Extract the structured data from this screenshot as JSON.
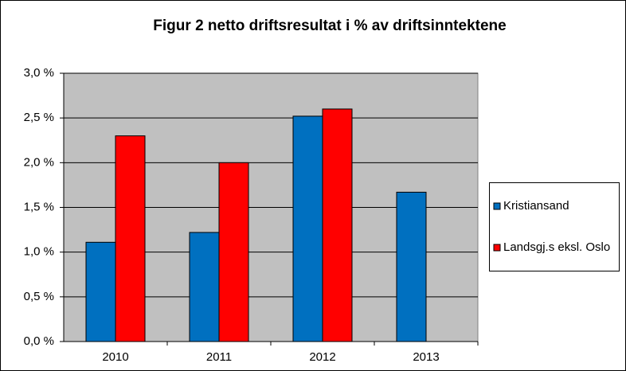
{
  "chart_data": {
    "type": "bar",
    "title": "Figur  2 netto driftsresultat  i % av driftsinntektene",
    "categories": [
      "2010",
      "2011",
      "2012",
      "2013"
    ],
    "series": [
      {
        "name": "Kristiansand",
        "color": "#0070c0",
        "values": [
          1.11,
          1.22,
          2.52,
          1.67
        ]
      },
      {
        "name": "Landsgj.s eksl. Oslo",
        "color": "#ff0000",
        "values": [
          2.3,
          2.0,
          2.6,
          null
        ]
      }
    ],
    "ylim": [
      0,
      3
    ],
    "yticks": [
      {
        "value": 0,
        "label": "0,0 %"
      },
      {
        "value": 0.5,
        "label": "0,5 %"
      },
      {
        "value": 1,
        "label": "1,0 %"
      },
      {
        "value": 1.5,
        "label": "1,5 %"
      },
      {
        "value": 2,
        "label": "2,0 %"
      },
      {
        "value": 2.5,
        "label": "2,5 %"
      },
      {
        "value": 3,
        "label": "3,0 %"
      }
    ],
    "grid": true,
    "legend": "right"
  }
}
